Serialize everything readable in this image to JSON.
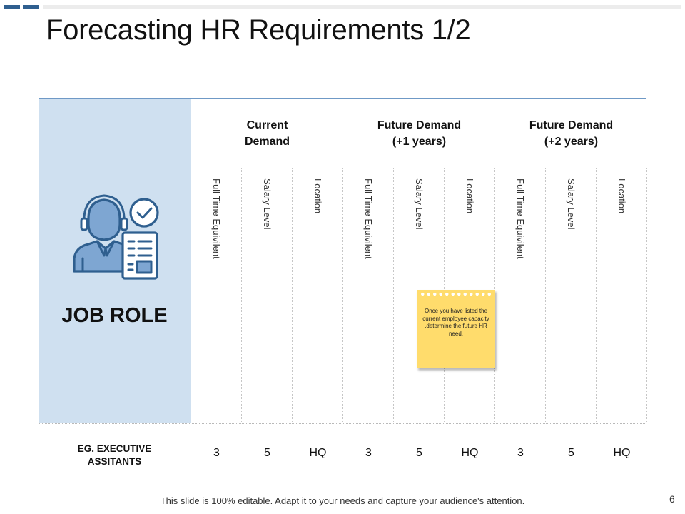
{
  "slide": {
    "title": "Forecasting HR Requirements 1/2",
    "page_number": "6",
    "footer": "This slide is 100% editable. Adapt it to your needs and capture your audience's attention."
  },
  "job_panel": {
    "label": "JOB ROLE",
    "icon": "employee-checklist-icon"
  },
  "groups": [
    {
      "line1": "Current",
      "line2": "Demand"
    },
    {
      "line1": "Future Demand",
      "line2": "(+1 years)"
    },
    {
      "line1": "Future Demand",
      "line2": "(+2 years)"
    }
  ],
  "columns": [
    "Full Time Equivilent",
    "Salary Level",
    "Location",
    "Full Time Equivilent",
    "Salary Level",
    "Location",
    "Full Time Equivilent",
    "Salary Level",
    "Location"
  ],
  "row": {
    "label_line1": "EG. EXECUTIVE",
    "label_line2": "ASSITANTS",
    "values": [
      "3",
      "5",
      "HQ",
      "3",
      "5",
      "HQ",
      "3",
      "5",
      "HQ"
    ]
  },
  "note": {
    "text": "Once you have listed the current employee capacity ,determine the future HR need."
  },
  "colors": {
    "accent": "#2f5f8f",
    "panel": "#cfe0f0",
    "rule": "#6f99c6",
    "note": "#ffdc6c"
  }
}
